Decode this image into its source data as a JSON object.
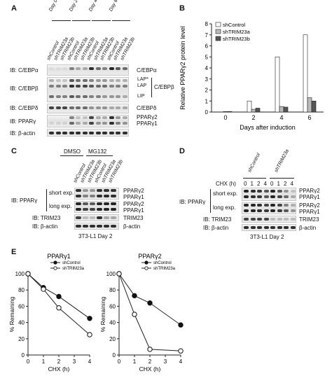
{
  "panels": {
    "A": {
      "letter": "A",
      "days": [
        "Day 0",
        "Day 2",
        "Day 4",
        "Day 6"
      ],
      "lanes": [
        "shControl",
        "shTRIM23a",
        "shTRIM23b",
        "shControl",
        "shTRIM23a",
        "shTRIM23b",
        "shControl",
        "shTRIM23a",
        "shTRIM23b",
        "shControl",
        "shTRIM23a",
        "shTRIM23b"
      ],
      "ib_labels": [
        "IB: C/EBPα",
        "IB: C/EBPβ",
        "IB: C/EBPδ",
        "IB: PPARγ",
        "IB: β-actin"
      ],
      "right_labels": {
        "cebpa": "C/EBPα",
        "lap_star": "LAP*",
        "lap": "LAP",
        "lip": "LIP",
        "cebpb": "C/EBPβ",
        "cebpd": "C/EBPδ",
        "pparg2": "PPARγ2",
        "pparg1": "PPARγ1"
      }
    },
    "B": {
      "letter": "B",
      "chart_data": {
        "type": "bar",
        "title": "",
        "xlabel": "Days after induction",
        "ylabel": "Relative PPARγ2 protein level",
        "categories": [
          "0",
          "2",
          "4",
          "6"
        ],
        "ylim": [
          0,
          8
        ],
        "yticks": [
          0,
          1,
          2,
          3,
          4,
          5,
          6,
          7,
          8
        ],
        "legend_position": "top-left",
        "series": [
          {
            "name": "shControl",
            "values": [
              0.0,
              1.0,
              5.0,
              7.0
            ],
            "color": "#ffffff"
          },
          {
            "name": "shTRIM23a",
            "values": [
              0.05,
              0.25,
              0.5,
              1.3
            ],
            "color": "#bbbbbb"
          },
          {
            "name": "shTRIM23b",
            "values": [
              0.05,
              0.35,
              0.45,
              1.0
            ],
            "color": "#555555"
          }
        ]
      }
    },
    "C": {
      "letter": "C",
      "treatments": [
        "DMSO",
        "MG132"
      ],
      "lanes": [
        "shControl",
        "shTRIM23a",
        "shTRIM23b",
        "shControl",
        "shTRIM23a",
        "shTRIM23b"
      ],
      "ib_pparg": "IB: PPARγ",
      "short_exp": "short exp.",
      "long_exp": "long exp.",
      "ib_trim23": "IB: TRIM23",
      "ib_actin": "IB: β-actin",
      "pparg2": "PPARγ2",
      "pparg1": "PPARγ1",
      "trim23": "TRIM23",
      "actin": "β-actin",
      "caption": "3T3-L1 Day 2"
    },
    "D": {
      "letter": "D",
      "groups": [
        "shControl",
        "shTRIM23a"
      ],
      "chx_label": "CHX (h)",
      "chx_values": [
        "0",
        "1",
        "2",
        "4",
        "0",
        "1",
        "2",
        "4"
      ],
      "ib_pparg": "IB: PPARγ",
      "short_exp": "short exp.",
      "long_exp": "long exp.",
      "ib_trim23": "IB: TRIM23",
      "ib_actin": "IB: β-actin",
      "pparg2": "PPARγ2",
      "pparg1": "PPARγ1",
      "trim23": "TRIM23",
      "actin": "β-actin",
      "caption": "3T3-L1 Day 2"
    },
    "E": {
      "letter": "E",
      "chart_data": [
        {
          "type": "line",
          "title": "PPARγ1",
          "xlabel": "CHX (h)",
          "ylabel": "% Remaining",
          "xlim": [
            0,
            4
          ],
          "ylim": [
            0,
            100
          ],
          "xticks": [
            0,
            1,
            2,
            3,
            4
          ],
          "yticks": [
            0,
            20,
            40,
            60,
            80,
            100
          ],
          "legend_position": "top-right",
          "series": [
            {
              "name": "shControl",
              "marker": "filled",
              "x": [
                0,
                1,
                2,
                4
              ],
              "y": [
                100,
                83,
                72,
                45
              ]
            },
            {
              "name": "shTRIM23a",
              "marker": "open",
              "x": [
                0,
                1,
                2,
                4
              ],
              "y": [
                100,
                81,
                58,
                25
              ]
            }
          ]
        },
        {
          "type": "line",
          "title": "PPARγ2",
          "xlabel": "CHX (h)",
          "ylabel": "% Remaining",
          "xlim": [
            0,
            4
          ],
          "ylim": [
            0,
            100
          ],
          "xticks": [
            0,
            1,
            2,
            3,
            4
          ],
          "yticks": [
            0,
            20,
            40,
            60,
            80,
            100
          ],
          "legend_position": "top-right",
          "series": [
            {
              "name": "shControl",
              "marker": "filled",
              "x": [
                0,
                1,
                2,
                4
              ],
              "y": [
                100,
                73,
                64,
                37
              ]
            },
            {
              "name": "shTRIM23a",
              "marker": "open",
              "x": [
                0,
                1,
                2,
                4
              ],
              "y": [
                100,
                50,
                7,
                5
              ]
            }
          ]
        }
      ]
    }
  }
}
